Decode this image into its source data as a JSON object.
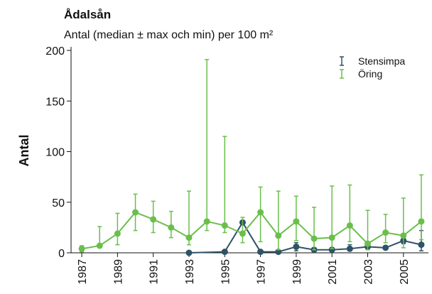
{
  "chart_data": {
    "type": "line",
    "title": "Ådalsån",
    "subtitle": "Antal (median ± max och min) per 100 m²",
    "ylabel": "Antal",
    "xlim": [
      1986.4,
      2006.4
    ],
    "xticks": [
      1987,
      1989,
      1991,
      1993,
      1995,
      1997,
      1999,
      2001,
      2003,
      2005
    ],
    "ylim": [
      0,
      200
    ],
    "yticks": [
      0,
      50,
      100,
      150,
      200
    ],
    "series": [
      {
        "name": "Stensimpa",
        "color": "#2e5266",
        "x": [
          1993,
          1995,
          1996,
          1997,
          1998,
          1999,
          2000,
          2001,
          2002,
          2003,
          2004,
          2005,
          2006
        ],
        "values": [
          0,
          1,
          30,
          1,
          1,
          6,
          3,
          3,
          4,
          6,
          5,
          12,
          8
        ],
        "max": [
          0,
          1,
          31,
          1,
          1,
          10,
          3,
          5,
          8,
          7,
          5,
          14,
          22
        ],
        "min": [
          0,
          1,
          29,
          1,
          1,
          2,
          3,
          2,
          2,
          5,
          5,
          9,
          2
        ]
      },
      {
        "name": "Öring",
        "color": "#6abf4b",
        "x": [
          1987,
          1988,
          1989,
          1990,
          1991,
          1992,
          1993,
          1994,
          1995,
          1996,
          1997,
          1998,
          1999,
          2000,
          2001,
          2002,
          2003,
          2004,
          2005,
          2006
        ],
        "values": [
          4,
          7,
          19,
          40,
          33,
          25,
          15,
          31,
          27,
          19,
          40,
          17,
          31,
          14,
          15,
          27,
          9,
          20,
          17,
          31
        ],
        "max": [
          7,
          26,
          39,
          58,
          51,
          41,
          61,
          191,
          115,
          35,
          65,
          61,
          56,
          45,
          66,
          67,
          42,
          38,
          54,
          77
        ],
        "min": [
          1,
          6,
          8,
          22,
          20,
          15,
          8,
          22,
          20,
          10,
          11,
          3,
          12,
          3,
          4,
          11,
          3,
          10,
          5,
          13
        ]
      }
    ]
  }
}
